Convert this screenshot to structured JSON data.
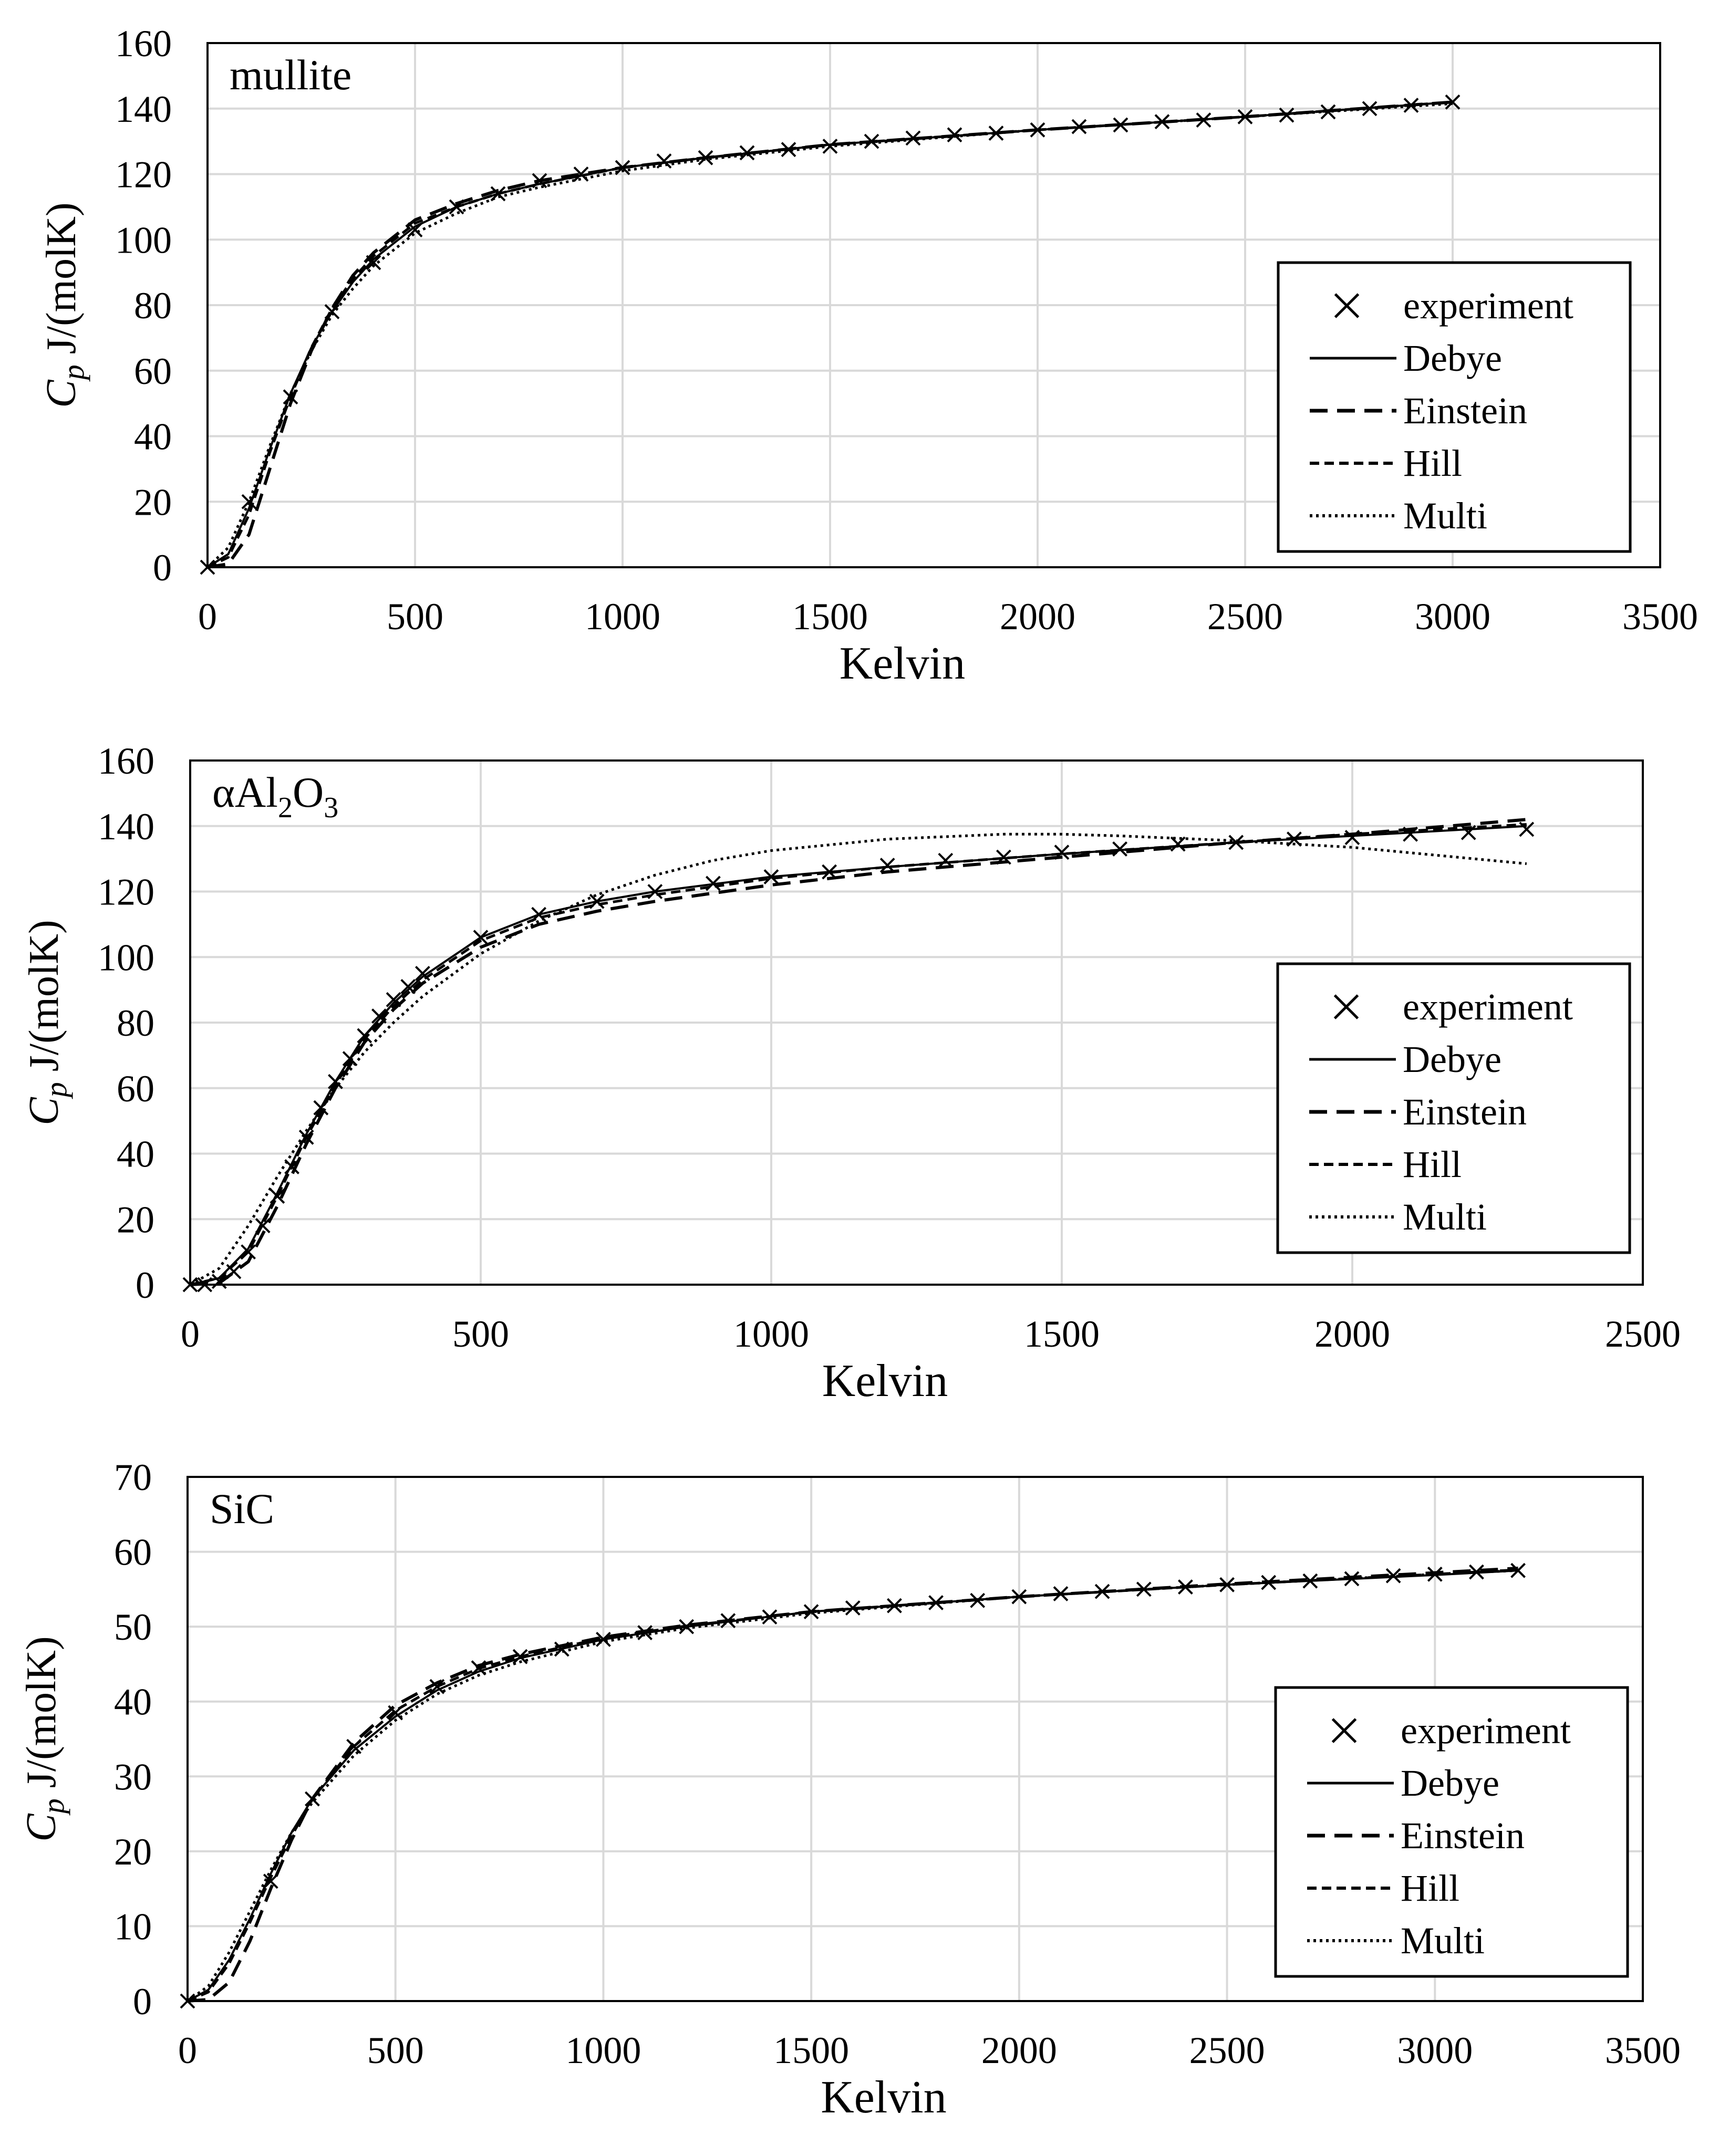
{
  "chart_data": [
    {
      "type": "line",
      "title": "mullite",
      "xlabel": "Kelvin",
      "ylabel": "Cp J/(molK)",
      "ylabel_symbol": "C",
      "ylabel_subscript": "p",
      "ylabel_units": "J/(molK)",
      "xlim": [
        0,
        3500
      ],
      "ylim": [
        0,
        160
      ],
      "x_ticks": [
        "0",
        "500",
        "1000",
        "1500",
        "2000",
        "2500",
        "3000",
        "3500"
      ],
      "y_ticks": [
        "0",
        "20",
        "40",
        "60",
        "80",
        "100",
        "120",
        "140",
        "160"
      ],
      "grid": true,
      "legend_position": "right",
      "series": [
        {
          "name": "experiment",
          "style": "marker-x",
          "x": [
            0,
            100,
            200,
            300,
            400,
            500,
            600,
            700,
            800,
            900,
            1000,
            1100,
            1200,
            1300,
            1400,
            1500,
            1600,
            1700,
            1800,
            1900,
            2000,
            2100,
            2200,
            2300,
            2400,
            2500,
            2600,
            2700,
            2800,
            2900,
            3000
          ],
          "y": [
            0,
            20,
            52,
            78,
            93,
            103,
            110,
            114,
            118,
            120,
            122,
            124,
            125,
            126.5,
            127.5,
            128.5,
            130,
            131,
            132,
            132.5,
            133.5,
            134.5,
            135,
            136,
            136.5,
            137.5,
            138,
            139,
            140,
            141,
            142
          ]
        },
        {
          "name": "Debye",
          "style": "solid",
          "x": [
            0,
            50,
            100,
            150,
            200,
            250,
            300,
            350,
            400,
            500,
            600,
            700,
            800,
            1000,
            1200,
            1500,
            2000,
            2500,
            3000
          ],
          "y": [
            0,
            4,
            18,
            36,
            53,
            67,
            78,
            87,
            94,
            104,
            110,
            114,
            117,
            122,
            125,
            129,
            133.5,
            137.5,
            142
          ]
        },
        {
          "name": "Einstein",
          "style": "dash",
          "x": [
            0,
            50,
            100,
            150,
            200,
            250,
            300,
            350,
            400,
            500,
            600,
            700,
            800,
            1000,
            1200,
            1500,
            2000,
            2500,
            3000
          ],
          "y": [
            0,
            1,
            10,
            30,
            50,
            66,
            79,
            89,
            96,
            106,
            111,
            115,
            118,
            122,
            125,
            129,
            133.5,
            137.5,
            142
          ]
        },
        {
          "name": "Hill",
          "style": "shortdash",
          "x": [
            0,
            50,
            100,
            150,
            200,
            250,
            300,
            350,
            400,
            500,
            600,
            700,
            800,
            1000,
            1200,
            1500,
            2000,
            2500,
            3000
          ],
          "y": [
            0,
            3,
            16,
            35,
            52,
            67,
            79,
            88,
            95,
            105,
            110,
            114,
            117,
            122,
            125,
            129,
            133.5,
            137.5,
            142
          ]
        },
        {
          "name": "Multi",
          "style": "dot",
          "x": [
            0,
            50,
            100,
            150,
            200,
            250,
            300,
            350,
            400,
            500,
            600,
            700,
            800,
            1000,
            1200,
            1500,
            2000,
            2500,
            3000
          ],
          "y": [
            0,
            6,
            20,
            37,
            53,
            66,
            77,
            85,
            92,
            102,
            108,
            113,
            116,
            121,
            124.5,
            128.5,
            133.5,
            137.5,
            141.5
          ]
        }
      ]
    },
    {
      "type": "line",
      "title": "αAl2O3",
      "title_parts": [
        "αAl",
        "2",
        "O",
        "3"
      ],
      "xlabel": "Kelvin",
      "ylabel": "Cp J/(molK)",
      "ylabel_symbol": "C",
      "ylabel_subscript": "p",
      "ylabel_units": "J/(molK)",
      "xlim": [
        0,
        2500
      ],
      "ylim": [
        0,
        160
      ],
      "x_ticks": [
        "0",
        "500",
        "1000",
        "1500",
        "2000",
        "2500"
      ],
      "y_ticks": [
        "0",
        "20",
        "40",
        "60",
        "80",
        "100",
        "120",
        "140",
        "160"
      ],
      "grid": true,
      "legend_position": "right",
      "series": [
        {
          "name": "experiment",
          "style": "marker-x",
          "x": [
            0,
            25,
            50,
            75,
            100,
            125,
            150,
            175,
            200,
            225,
            250,
            275,
            300,
            325,
            350,
            375,
            400,
            500,
            600,
            700,
            800,
            900,
            1000,
            1100,
            1200,
            1300,
            1400,
            1500,
            1600,
            1700,
            1800,
            1900,
            2000,
            2100,
            2200,
            2300
          ],
          "y": [
            0,
            0,
            1,
            4,
            10,
            18,
            27,
            36,
            45,
            54,
            62,
            69,
            76,
            82,
            87,
            91,
            95,
            106,
            113,
            117,
            120,
            122.5,
            124.5,
            126,
            128,
            129.5,
            130.5,
            132,
            133,
            134.5,
            135,
            136,
            136.5,
            137.5,
            138,
            139
          ]
        },
        {
          "name": "Debye",
          "style": "solid",
          "x": [
            0,
            50,
            100,
            150,
            200,
            250,
            300,
            350,
            400,
            500,
            600,
            700,
            800,
            1000,
            1200,
            1500,
            1800,
            2000,
            2300
          ],
          "y": [
            0,
            2,
            11,
            28,
            46,
            62,
            76,
            86,
            94,
            106,
            113,
            117,
            120,
            124.5,
            127.5,
            131.5,
            135,
            137,
            140
          ]
        },
        {
          "name": "Einstein",
          "style": "dash",
          "x": [
            0,
            50,
            100,
            150,
            200,
            250,
            300,
            350,
            400,
            500,
            600,
            700,
            800,
            1000,
            1200,
            1500,
            1800,
            2000,
            2300
          ],
          "y": [
            0,
            0.5,
            7,
            24,
            43,
            60,
            74,
            84,
            92,
            103,
            110,
            114,
            117,
            122,
            126,
            130.5,
            135,
            137.5,
            142
          ]
        },
        {
          "name": "Hill",
          "style": "shortdash",
          "x": [
            0,
            50,
            100,
            150,
            200,
            250,
            300,
            350,
            400,
            500,
            600,
            700,
            800,
            1000,
            1200,
            1500,
            1800,
            2000,
            2300
          ],
          "y": [
            0,
            2,
            10,
            27,
            45,
            61,
            75,
            85,
            93,
            105,
            112,
            116,
            119,
            124,
            127.5,
            131.5,
            135,
            137.5,
            140.5
          ]
        },
        {
          "name": "Multi",
          "style": "dot",
          "x": [
            0,
            50,
            100,
            150,
            200,
            250,
            300,
            350,
            400,
            500,
            600,
            700,
            800,
            900,
            1000,
            1200,
            1400,
            1500,
            1600,
            1800,
            2000,
            2300
          ],
          "y": [
            0,
            5,
            18,
            33,
            47,
            60,
            71,
            80,
            88,
            101,
            111,
            119,
            125,
            129.5,
            132.5,
            136,
            137.5,
            137.5,
            137,
            135.5,
            133.5,
            128.5
          ]
        }
      ]
    },
    {
      "type": "line",
      "title": "SiC",
      "xlabel": "Kelvin",
      "ylabel": "Cp J/(molK)",
      "ylabel_symbol": "C",
      "ylabel_subscript": "p",
      "ylabel_units": "J/(molK)",
      "xlim": [
        0,
        3500
      ],
      "ylim": [
        0,
        70
      ],
      "x_ticks": [
        "0",
        "500",
        "1000",
        "1500",
        "2000",
        "2500",
        "3000",
        "3500"
      ],
      "y_ticks": [
        "0",
        "10",
        "20",
        "30",
        "40",
        "50",
        "60",
        "70"
      ],
      "grid": true,
      "legend_position": "right",
      "series": [
        {
          "name": "experiment",
          "style": "marker-x",
          "x": [
            0,
            200,
            300,
            400,
            500,
            600,
            700,
            800,
            900,
            1000,
            1100,
            1200,
            1300,
            1400,
            1500,
            1600,
            1700,
            1800,
            1900,
            2000,
            2100,
            2200,
            2300,
            2400,
            2500,
            2600,
            2700,
            2800,
            2900,
            3000,
            3100,
            3200
          ],
          "y": [
            0,
            16,
            27,
            34,
            38.5,
            42,
            44.5,
            46,
            47,
            48.3,
            49.2,
            50,
            50.8,
            51.3,
            52,
            52.5,
            52.8,
            53.2,
            53.5,
            54,
            54.4,
            54.7,
            55,
            55.3,
            55.6,
            55.9,
            56.1,
            56.4,
            56.8,
            57,
            57.3,
            57.5
          ]
        },
        {
          "name": "Debye",
          "style": "solid",
          "x": [
            0,
            50,
            100,
            150,
            200,
            250,
            300,
            400,
            500,
            600,
            700,
            800,
            1000,
            1200,
            1500,
            2000,
            2500,
            3000,
            3200
          ],
          "y": [
            0,
            1.5,
            5.5,
            11,
            17,
            22.5,
            27,
            33.5,
            38,
            41.5,
            44,
            45.8,
            48.3,
            50,
            52,
            54,
            55.6,
            56.9,
            57.5
          ]
        },
        {
          "name": "Einstein",
          "style": "dash",
          "x": [
            0,
            50,
            100,
            150,
            200,
            250,
            300,
            400,
            500,
            600,
            700,
            800,
            1000,
            1200,
            1500,
            2000,
            2500,
            3000,
            3200
          ],
          "y": [
            0,
            0.2,
            2.5,
            8,
            15,
            21.5,
            27,
            34.5,
            39.5,
            42.5,
            44.8,
            46.3,
            48.6,
            50.2,
            52,
            54,
            55.7,
            57.2,
            57.8
          ]
        },
        {
          "name": "Hill",
          "style": "shortdash",
          "x": [
            0,
            50,
            100,
            150,
            200,
            250,
            300,
            400,
            500,
            600,
            700,
            800,
            1000,
            1200,
            1500,
            2000,
            2500,
            3000,
            3200
          ],
          "y": [
            0,
            1.2,
            5,
            10.5,
            16.5,
            22,
            27,
            34,
            38.8,
            42,
            44.4,
            46,
            48.5,
            50.1,
            52,
            54,
            55.6,
            57,
            57.6
          ]
        },
        {
          "name": "Multi",
          "style": "dot",
          "x": [
            0,
            50,
            100,
            150,
            200,
            250,
            300,
            400,
            500,
            600,
            700,
            800,
            1000,
            1200,
            1500,
            2000,
            2500,
            3000,
            3200
          ],
          "y": [
            0,
            2,
            6.5,
            12,
            17.5,
            22.5,
            26.5,
            32.8,
            37.5,
            41,
            43.5,
            45.3,
            48,
            49.8,
            51.8,
            54,
            55.6,
            57,
            57.5
          ]
        }
      ]
    }
  ]
}
